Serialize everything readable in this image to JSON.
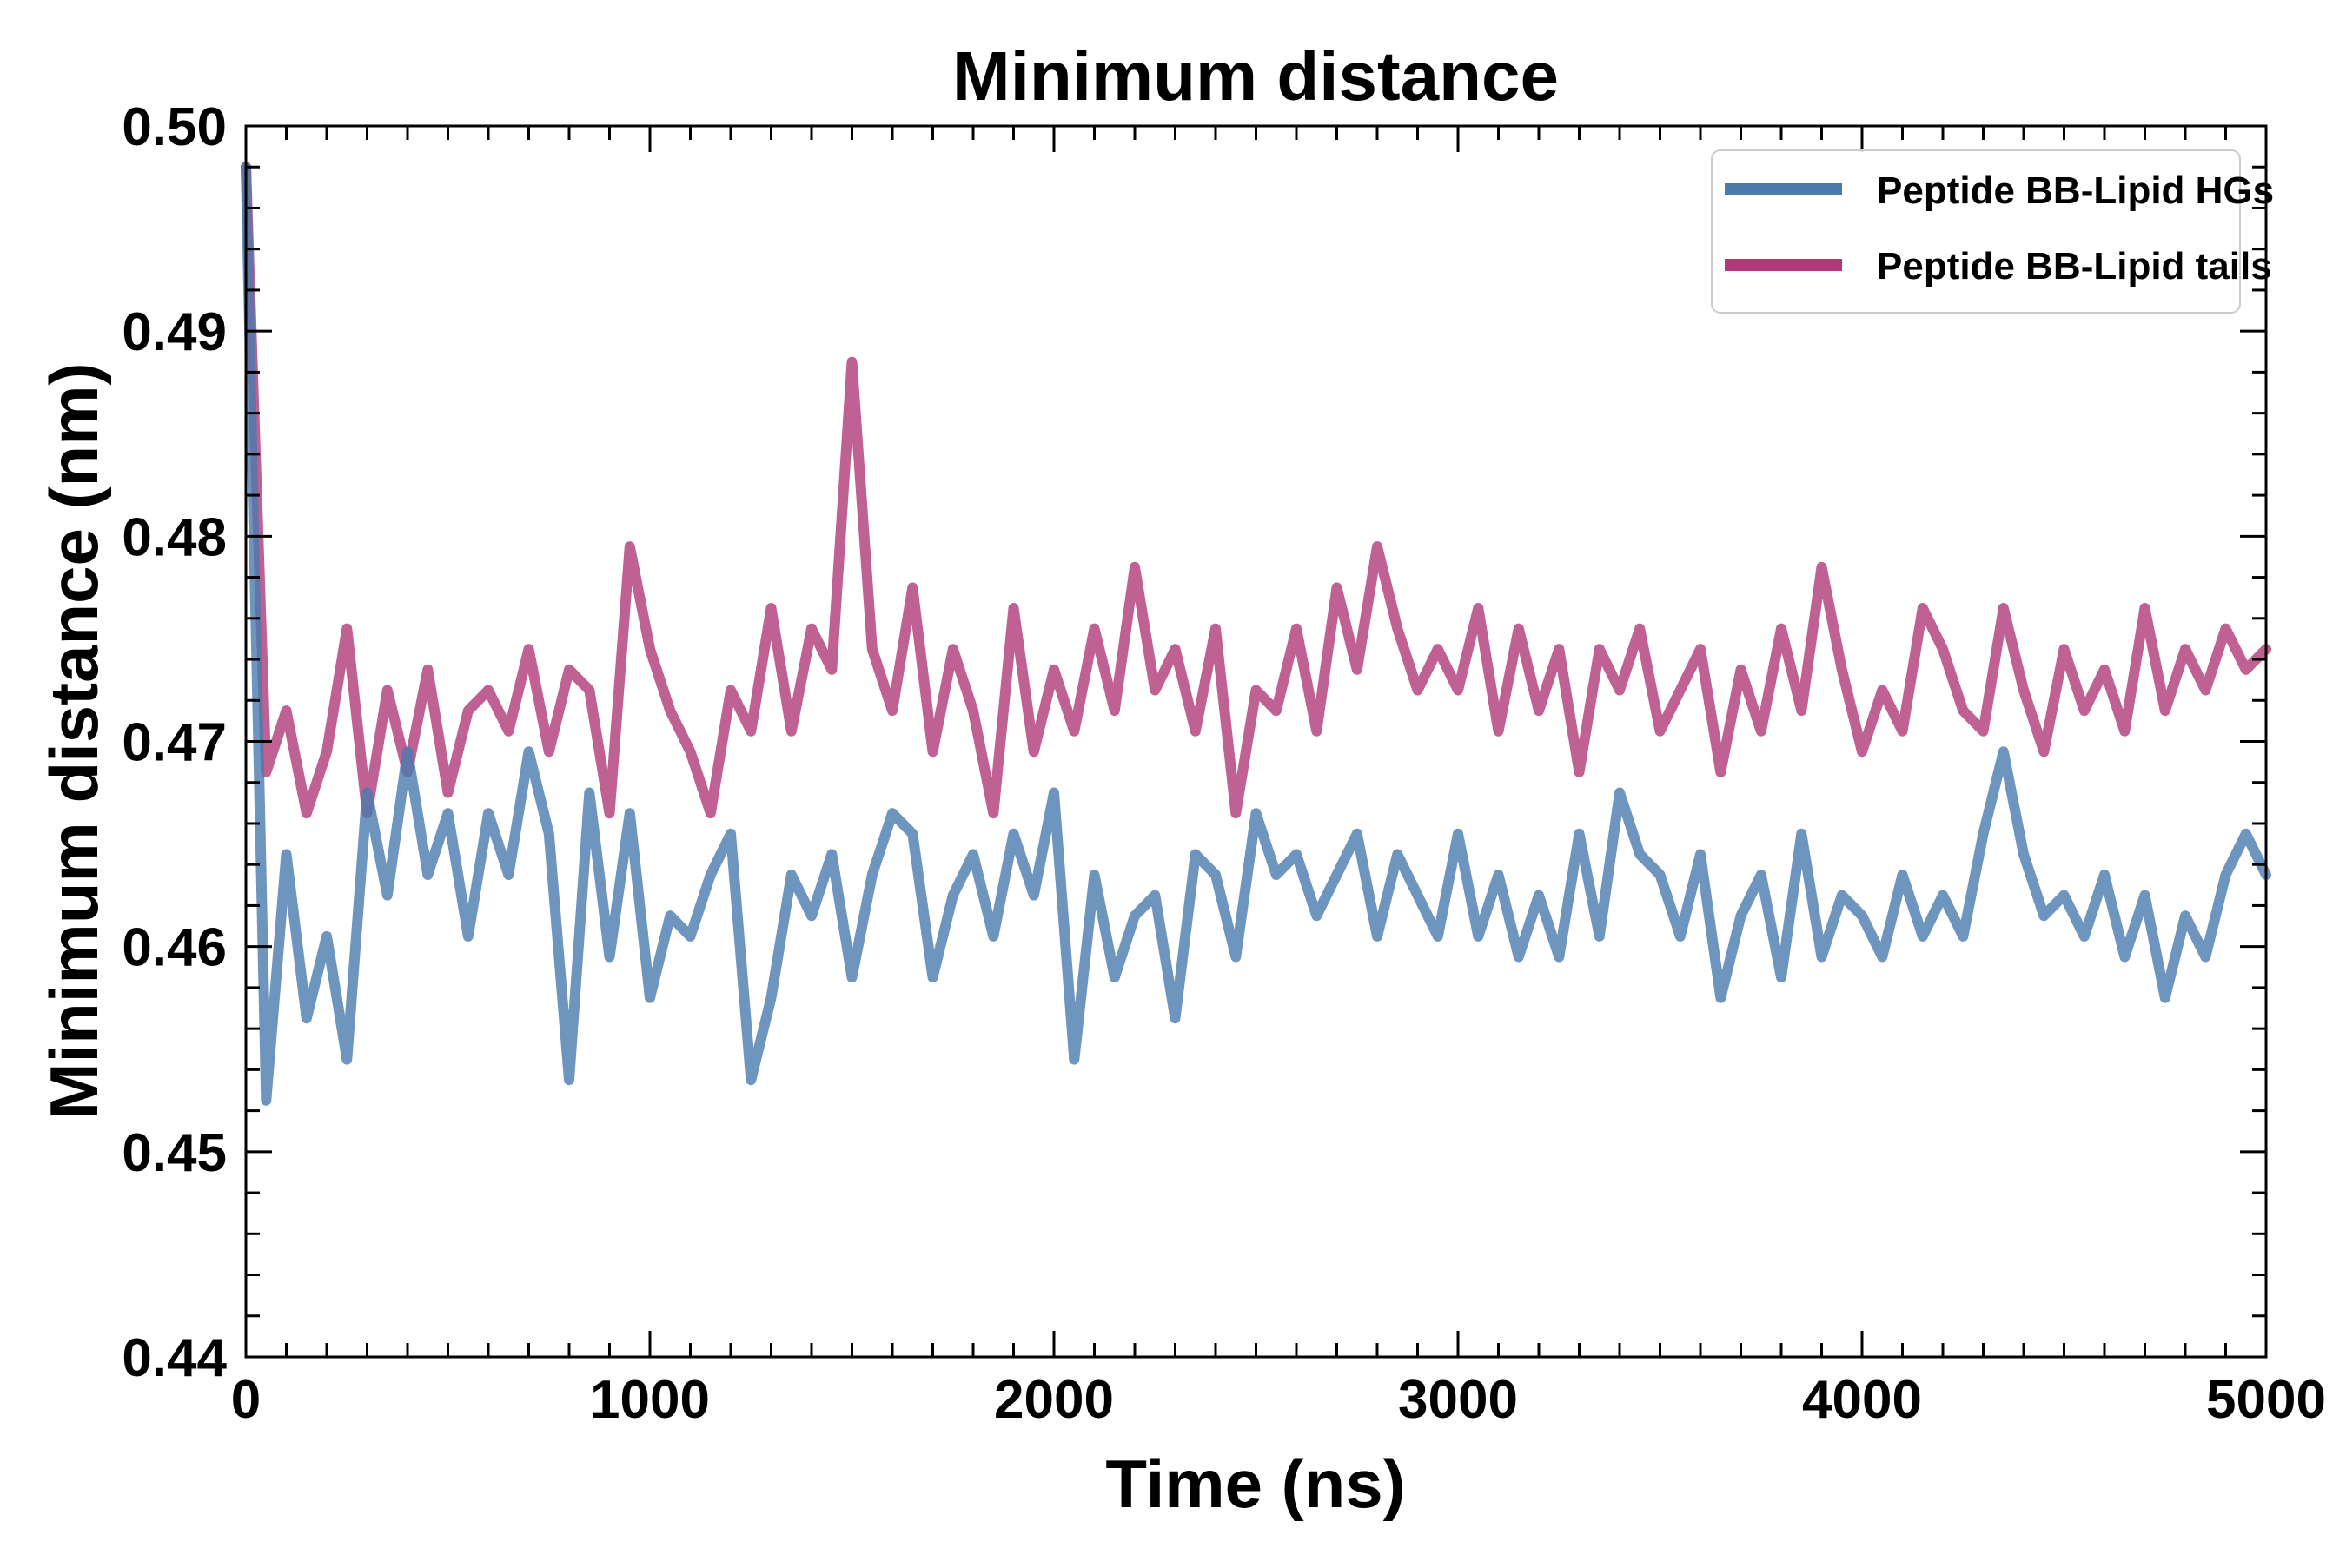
{
  "chart_data": {
    "type": "line",
    "title": "Minimum distance",
    "xlabel": "Time (ns)",
    "ylabel": "Minimum distance (nm)",
    "xlim": [
      0,
      5000
    ],
    "ylim": [
      0.44,
      0.5
    ],
    "xticks": [
      0,
      1000,
      2000,
      3000,
      4000,
      5000
    ],
    "xtick_labels": [
      "0",
      "1000",
      "2000",
      "3000",
      "4000",
      "5000"
    ],
    "yticks": [
      0.44,
      0.45,
      0.46,
      0.47,
      0.48,
      0.49,
      0.5
    ],
    "ytick_labels": [
      "0.44",
      "0.45",
      "0.46",
      "0.47",
      "0.48",
      "0.49",
      "0.50"
    ],
    "grid": false,
    "legend_position": "top-right",
    "x": [
      0,
      50,
      100,
      150,
      200,
      250,
      300,
      350,
      400,
      450,
      500,
      550,
      600,
      650,
      700,
      750,
      800,
      850,
      900,
      950,
      1000,
      1050,
      1100,
      1150,
      1200,
      1250,
      1300,
      1350,
      1400,
      1450,
      1500,
      1550,
      1600,
      1650,
      1700,
      1750,
      1800,
      1850,
      1900,
      1950,
      2000,
      2050,
      2100,
      2150,
      2200,
      2250,
      2300,
      2350,
      2400,
      2450,
      2500,
      2550,
      2600,
      2650,
      2700,
      2750,
      2800,
      2850,
      2900,
      2950,
      3000,
      3050,
      3100,
      3150,
      3200,
      3250,
      3300,
      3350,
      3400,
      3450,
      3500,
      3550,
      3600,
      3650,
      3700,
      3750,
      3800,
      3850,
      3900,
      3950,
      4000,
      4050,
      4100,
      4150,
      4200,
      4250,
      4300,
      4350,
      4400,
      4450,
      4500,
      4550,
      4600,
      4650,
      4700,
      4750,
      4800,
      4850,
      4900,
      4950,
      5000
    ],
    "series": [
      {
        "name": "Peptide BB-Lipid HGs",
        "color": "#4a7aae",
        "values": [
          0.498,
          0.4525,
          0.4645,
          0.4565,
          0.4605,
          0.4545,
          0.4675,
          0.4625,
          0.4695,
          0.4635,
          0.4665,
          0.4605,
          0.4665,
          0.4635,
          0.4695,
          0.4655,
          0.4535,
          0.4675,
          0.4595,
          0.4665,
          0.4575,
          0.4615,
          0.4605,
          0.4635,
          0.4655,
          0.4535,
          0.4575,
          0.4635,
          0.4615,
          0.4645,
          0.4585,
          0.4635,
          0.4665,
          0.4655,
          0.4585,
          0.4625,
          0.4645,
          0.4605,
          0.4655,
          0.4625,
          0.4675,
          0.4545,
          0.4635,
          0.4585,
          0.4615,
          0.4625,
          0.4565,
          0.4645,
          0.4635,
          0.4595,
          0.4665,
          0.4635,
          0.4645,
          0.4615,
          0.4635,
          0.4655,
          0.4605,
          0.4645,
          0.4625,
          0.4605,
          0.4655,
          0.4605,
          0.4635,
          0.4595,
          0.4625,
          0.4595,
          0.4655,
          0.4605,
          0.4675,
          0.4645,
          0.4635,
          0.4605,
          0.4645,
          0.4575,
          0.4615,
          0.4635,
          0.4585,
          0.4655,
          0.4595,
          0.4625,
          0.4615,
          0.4595,
          0.4635,
          0.4605,
          0.4625,
          0.4605,
          0.4655,
          0.4695,
          0.4645,
          0.4615,
          0.4625,
          0.4605,
          0.4635,
          0.4595,
          0.4625,
          0.4575,
          0.4615,
          0.4595,
          0.4635,
          0.4655,
          0.4635
        ]
      },
      {
        "name": "Peptide BB-Lipid tails",
        "color": "#b03a78",
        "values": [
          0.498,
          0.4685,
          0.4715,
          0.4665,
          0.4695,
          0.4755,
          0.4665,
          0.4725,
          0.4685,
          0.4735,
          0.4675,
          0.4715,
          0.4725,
          0.4705,
          0.4745,
          0.4695,
          0.4735,
          0.4725,
          0.4665,
          0.4795,
          0.4745,
          0.4715,
          0.4695,
          0.4665,
          0.4725,
          0.4705,
          0.4765,
          0.4705,
          0.4755,
          0.4735,
          0.4885,
          0.4745,
          0.4715,
          0.4775,
          0.4695,
          0.4745,
          0.4715,
          0.4665,
          0.4765,
          0.4695,
          0.4735,
          0.4705,
          0.4755,
          0.4715,
          0.4785,
          0.4725,
          0.4745,
          0.4705,
          0.4755,
          0.4665,
          0.4725,
          0.4715,
          0.4755,
          0.4705,
          0.4775,
          0.4735,
          0.4795,
          0.4755,
          0.4725,
          0.4745,
          0.4725,
          0.4765,
          0.4705,
          0.4755,
          0.4715,
          0.4745,
          0.4685,
          0.4745,
          0.4725,
          0.4755,
          0.4705,
          0.4725,
          0.4745,
          0.4685,
          0.4735,
          0.4705,
          0.4755,
          0.4715,
          0.4785,
          0.4735,
          0.4695,
          0.4725,
          0.4705,
          0.4765,
          0.4745,
          0.4715,
          0.4705,
          0.4765,
          0.4725,
          0.4695,
          0.4745,
          0.4715,
          0.4735,
          0.4705,
          0.4765,
          0.4715,
          0.4745,
          0.4725,
          0.4755,
          0.4735,
          0.4745
        ]
      }
    ]
  }
}
